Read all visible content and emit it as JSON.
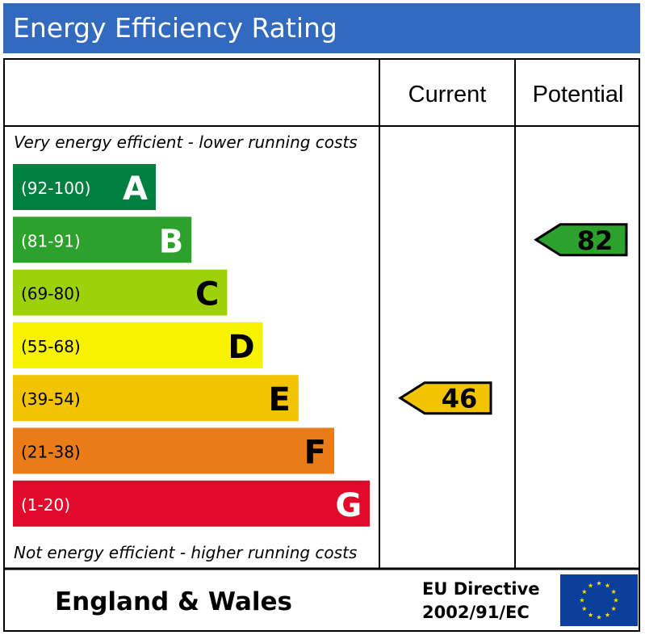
{
  "title": "Energy Efficiency Rating",
  "chart_data": {
    "type": "bar",
    "title": "Energy Efficiency Rating",
    "columns": [
      "Current",
      "Potential"
    ],
    "top_caption": "Very energy efficient - lower running costs",
    "bottom_caption": "Not energy efficient - higher running costs",
    "bands": [
      {
        "letter": "A",
        "range": "(92-100)",
        "min": 92,
        "max": 100,
        "color": "#008040"
      },
      {
        "letter": "B",
        "range": "(81-91)",
        "min": 81,
        "max": 91,
        "color": "#2ca22c"
      },
      {
        "letter": "C",
        "range": "(69-80)",
        "min": 69,
        "max": 80,
        "color": "#9dd10a"
      },
      {
        "letter": "D",
        "range": "(55-68)",
        "min": 55,
        "max": 68,
        "color": "#f7f300"
      },
      {
        "letter": "E",
        "range": "(39-54)",
        "min": 39,
        "max": 54,
        "color": "#f2c300"
      },
      {
        "letter": "F",
        "range": "(21-38)",
        "min": 21,
        "max": 38,
        "color": "#e97c16"
      },
      {
        "letter": "G",
        "range": "(1-20)",
        "min": 1,
        "max": 20,
        "color": "#e20a2b"
      }
    ],
    "current": {
      "value": 46,
      "band": "E",
      "color": "#f2c300"
    },
    "potential": {
      "value": 82,
      "band": "B",
      "color": "#2ca22c"
    }
  },
  "footer": {
    "region": "England & Wales",
    "directive_line1": "EU Directive",
    "directive_line2": "2002/91/EC"
  },
  "colors": {
    "title_bar": "#326ac0",
    "flag_blue": "#0a3f9c",
    "flag_star": "#ffdd00"
  }
}
